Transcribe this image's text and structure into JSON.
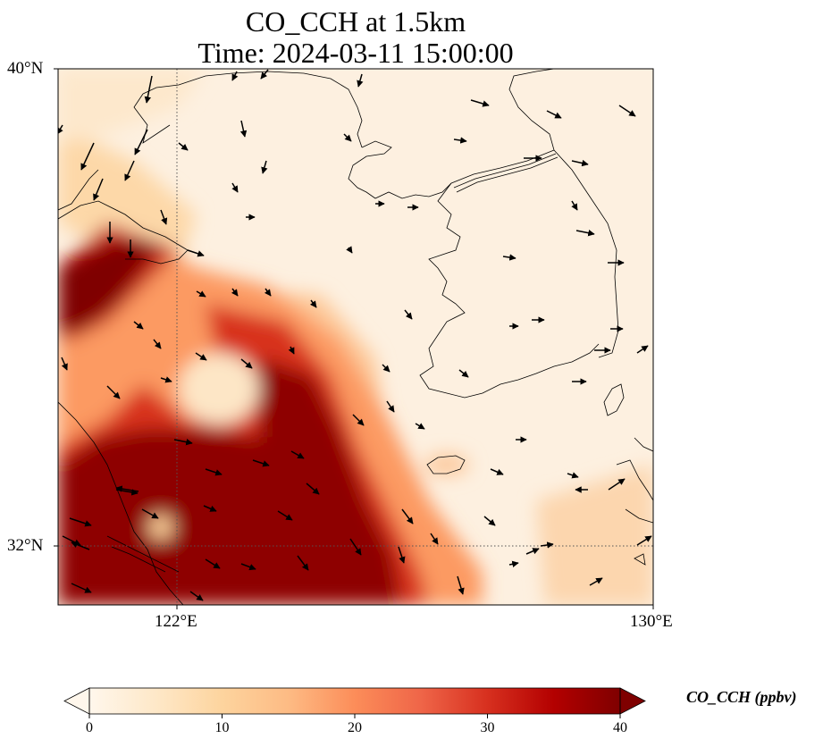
{
  "title": {
    "line1": "CO_CCH at 1.5km",
    "line2": "Time: 2024-03-11 15:00:00"
  },
  "map": {
    "variable": "CO_CCH",
    "height": "1.5km",
    "time": "2024-03-11 15:00:00",
    "extent": {
      "lon_min": 120,
      "lon_max": 130,
      "lat_min": 31,
      "lat_max": 40
    },
    "lat_ticks": [
      "40°N",
      "32°N"
    ],
    "lon_ticks": [
      "122°E",
      "130°E"
    ],
    "gridlines": {
      "lat": 32,
      "lon": 122,
      "style": "dotted"
    },
    "features": [
      "coastlines",
      "wind-vectors",
      "pollution-plume-over-eastern-china"
    ]
  },
  "colorbar": {
    "label": "CO_CCH (ppbv)",
    "ticks": [
      "0",
      "10",
      "20",
      "30",
      "40"
    ],
    "min": 0,
    "max": 40,
    "extend": "both",
    "colormap": [
      "#fff7ec",
      "#fee8c8",
      "#fdd49e",
      "#fdbb84",
      "#fc8d59",
      "#ef6548",
      "#d7301f",
      "#b30000",
      "#7f0000"
    ]
  }
}
